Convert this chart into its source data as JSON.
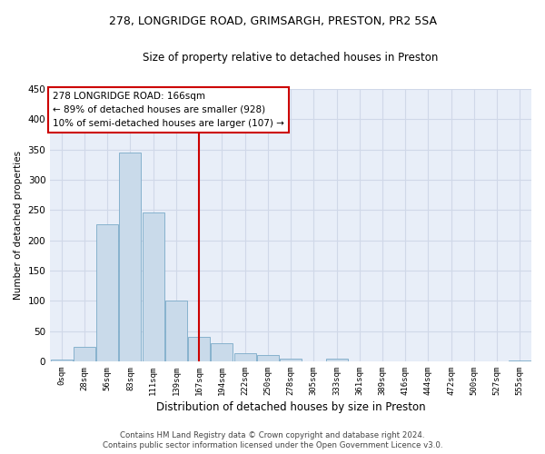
{
  "title_line1": "278, LONGRIDGE ROAD, GRIMSARGH, PRESTON, PR2 5SA",
  "title_line2": "Size of property relative to detached houses in Preston",
  "xlabel": "Distribution of detached houses by size in Preston",
  "ylabel": "Number of detached properties",
  "annotation_line1": "278 LONGRIDGE ROAD: 166sqm",
  "annotation_line2": "← 89% of detached houses are smaller (928)",
  "annotation_line3": "10% of semi-detached houses are larger (107) →",
  "footer_line1": "Contains HM Land Registry data © Crown copyright and database right 2024.",
  "footer_line2": "Contains public sector information licensed under the Open Government Licence v3.0.",
  "bar_labels": [
    "0sqm",
    "28sqm",
    "56sqm",
    "83sqm",
    "111sqm",
    "139sqm",
    "167sqm",
    "194sqm",
    "222sqm",
    "250sqm",
    "278sqm",
    "305sqm",
    "333sqm",
    "361sqm",
    "389sqm",
    "416sqm",
    "444sqm",
    "472sqm",
    "500sqm",
    "527sqm",
    "555sqm"
  ],
  "bar_values": [
    3,
    24,
    226,
    345,
    246,
    100,
    41,
    30,
    13,
    10,
    5,
    0,
    5,
    0,
    0,
    0,
    0,
    0,
    0,
    0,
    2
  ],
  "bar_color": "#c9daea",
  "bar_edge_color": "#7aaac8",
  "vline_x": 6.0,
  "vline_color": "#cc0000",
  "annotation_box_color": "#cc0000",
  "grid_color": "#d0d8e8",
  "background_color": "#e8eef8",
  "ylim": [
    0,
    450
  ],
  "yticks": [
    0,
    50,
    100,
    150,
    200,
    250,
    300,
    350,
    400,
    450
  ]
}
